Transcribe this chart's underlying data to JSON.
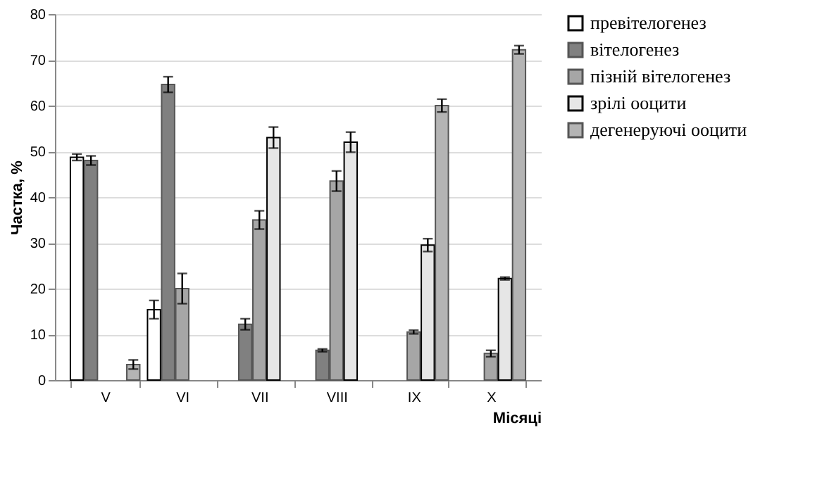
{
  "chart_data": {
    "type": "bar",
    "xlabel": "Місяці",
    "ylabel": "Частка, %",
    "categories": [
      "V",
      "VI",
      "VII",
      "VIII",
      "IX",
      "X"
    ],
    "series": [
      {
        "name": "превітелогенез",
        "color": "#ffffff",
        "values": [
          48.7,
          15.4,
          null,
          null,
          null,
          null
        ],
        "errors": [
          0.7,
          2,
          null,
          null,
          null,
          null
        ]
      },
      {
        "name": "вітелогенез",
        "color": "#808080",
        "values": [
          48,
          64.6,
          12.2,
          6.5,
          null,
          null
        ],
        "errors": [
          1,
          1.7,
          1.2,
          0.3,
          null,
          null
        ]
      },
      {
        "name": "пізній вітелогенез",
        "color": "#a6a6a6",
        "values": [
          null,
          20,
          35,
          43.5,
          10.5,
          5.8
        ],
        "errors": [
          null,
          3.3,
          2,
          2.2,
          0.4,
          0.7
        ]
      },
      {
        "name": "зрілі ооцити",
        "color": "#e6e6e6",
        "values": [
          null,
          null,
          53,
          52,
          29.5,
          22.2
        ],
        "errors": [
          null,
          null,
          2.3,
          2.2,
          1.4,
          0.3
        ]
      },
      {
        "name": "дегенеруючі ооцити",
        "color": "#b4b4b4",
        "values": [
          3.4,
          null,
          null,
          null,
          60,
          72.2
        ],
        "errors": [
          1,
          null,
          null,
          null,
          1.4,
          0.9
        ]
      }
    ],
    "ylim": [
      0,
      80
    ],
    "yticks": [
      0,
      10,
      20,
      30,
      40,
      50,
      60,
      70,
      80
    ],
    "grid": "y",
    "legend": "right"
  }
}
